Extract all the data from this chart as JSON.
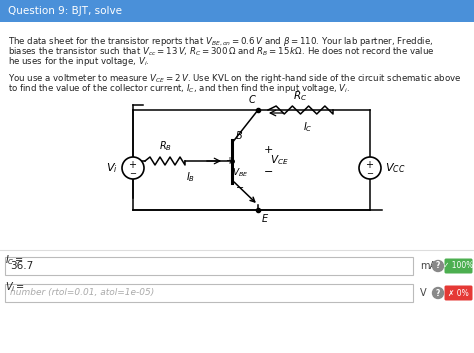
{
  "title": "Question 9: BJT, solve",
  "title_bg": "#4a90d9",
  "title_color": "#ffffff",
  "body_bg": "#ffffff",
  "text_color": "#222222",
  "para1_line1": "The data sheet for the transistor reports that $V_{BE,on} = 0.6\\,V$ and $\\beta = 110$. Your lab partner, Freddie,",
  "para1_line2": "biases the transistor such that $V_{cc} = 13\\,V$, $R_C = 300\\,\\Omega$ and $R_B = 15\\,k\\Omega$. He does not record the value",
  "para1_line3": "he uses for the input voltage, $V_i$.",
  "para2_line1": "You use a voltmeter to measure $V_{CE} = 2\\,V$. Use KVL on the right-hand side of the circuit schematic above",
  "para2_line2": "to find the value of the collector current, $I_C$, and then find the input voltage, $V_i$.",
  "ic_label": "$I_C =$",
  "ic_value": "36.7",
  "ic_unit": "mA",
  "ic_badge_color": "#4caf50",
  "ic_badge_text": "✓ 100%",
  "vi_label": "$V_i =$",
  "vi_value": "number (rtol=0.01, atol=1e-05)",
  "vi_unit": "V",
  "vi_badge_color": "#e53935",
  "vi_badge_text": "✗ 0%",
  "badge_info_color": "#888888"
}
